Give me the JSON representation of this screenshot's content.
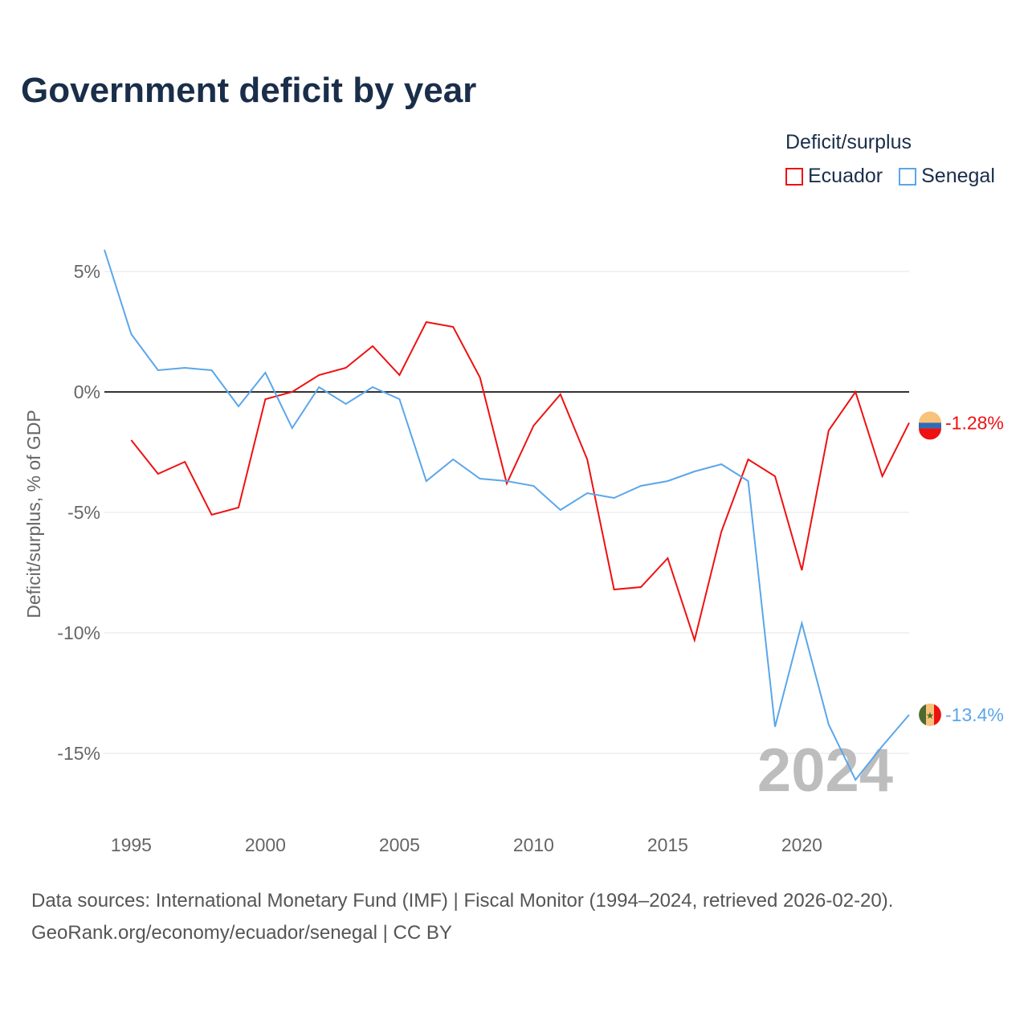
{
  "chart_data": {
    "type": "line",
    "title": "Government deficit by year",
    "ylabel": "Deficit/surplus, % of GDP",
    "xlabel": "",
    "xlim": [
      1994,
      2024
    ],
    "ylim": [
      -17.5,
      6
    ],
    "x_ticks": [
      1995,
      2000,
      2005,
      2010,
      2015,
      2020
    ],
    "x_tick_labels": [
      "1995",
      "2000",
      "2005",
      "2010",
      "2015",
      "2020"
    ],
    "y_ticks": [
      5,
      0,
      -5,
      -10,
      -15
    ],
    "y_tick_labels": [
      "5%",
      "0%",
      "-5%",
      "-10%",
      "-15%"
    ],
    "legend_title": "Deficit/surplus",
    "legend_placement": "top-right",
    "year_label": "2024",
    "series": [
      {
        "name": "Ecuador",
        "color": "#ee1111",
        "end_label": "-1.28%",
        "x": [
          1995,
          1996,
          1997,
          1998,
          1999,
          2000,
          2001,
          2002,
          2003,
          2004,
          2005,
          2006,
          2007,
          2008,
          2009,
          2010,
          2011,
          2012,
          2013,
          2014,
          2015,
          2016,
          2017,
          2018,
          2019,
          2020,
          2021,
          2022,
          2023,
          2024
        ],
        "values": [
          -2.0,
          -3.4,
          -2.9,
          -5.1,
          -4.8,
          -0.3,
          0.0,
          0.7,
          1.0,
          1.9,
          0.7,
          2.9,
          2.7,
          0.6,
          -3.8,
          -1.4,
          -0.1,
          -2.8,
          -8.2,
          -8.1,
          -6.9,
          -10.3,
          -5.8,
          -2.8,
          -3.5,
          -7.4,
          -1.6,
          0.0,
          -3.5,
          -1.28
        ]
      },
      {
        "name": "Senegal",
        "color": "#5ba6ea",
        "end_label": "-13.4%",
        "x": [
          1994,
          1995,
          1996,
          1997,
          1998,
          1999,
          2000,
          2001,
          2002,
          2003,
          2004,
          2005,
          2006,
          2007,
          2008,
          2009,
          2010,
          2011,
          2012,
          2013,
          2014,
          2015,
          2016,
          2017,
          2018,
          2019,
          2020,
          2021,
          2022,
          2023,
          2024
        ],
        "values": [
          5.9,
          2.4,
          0.9,
          1.0,
          0.9,
          -0.6,
          0.8,
          -1.5,
          0.2,
          -0.5,
          0.2,
          -0.3,
          -3.7,
          -2.8,
          -3.6,
          -3.7,
          -3.9,
          -4.9,
          -4.2,
          -4.4,
          -3.9,
          -3.7,
          -3.3,
          -3.0,
          -3.7,
          -13.9,
          -9.6,
          -13.8,
          -16.1,
          -14.7,
          -13.4
        ]
      }
    ]
  },
  "footer": {
    "line1": "Data sources: International Monetary Fund (IMF) | Fiscal Monitor (1994–2024, retrieved 2026-02-20).",
    "line2": "GeoRank.org/economy/ecuador/senegal | CC BY"
  }
}
